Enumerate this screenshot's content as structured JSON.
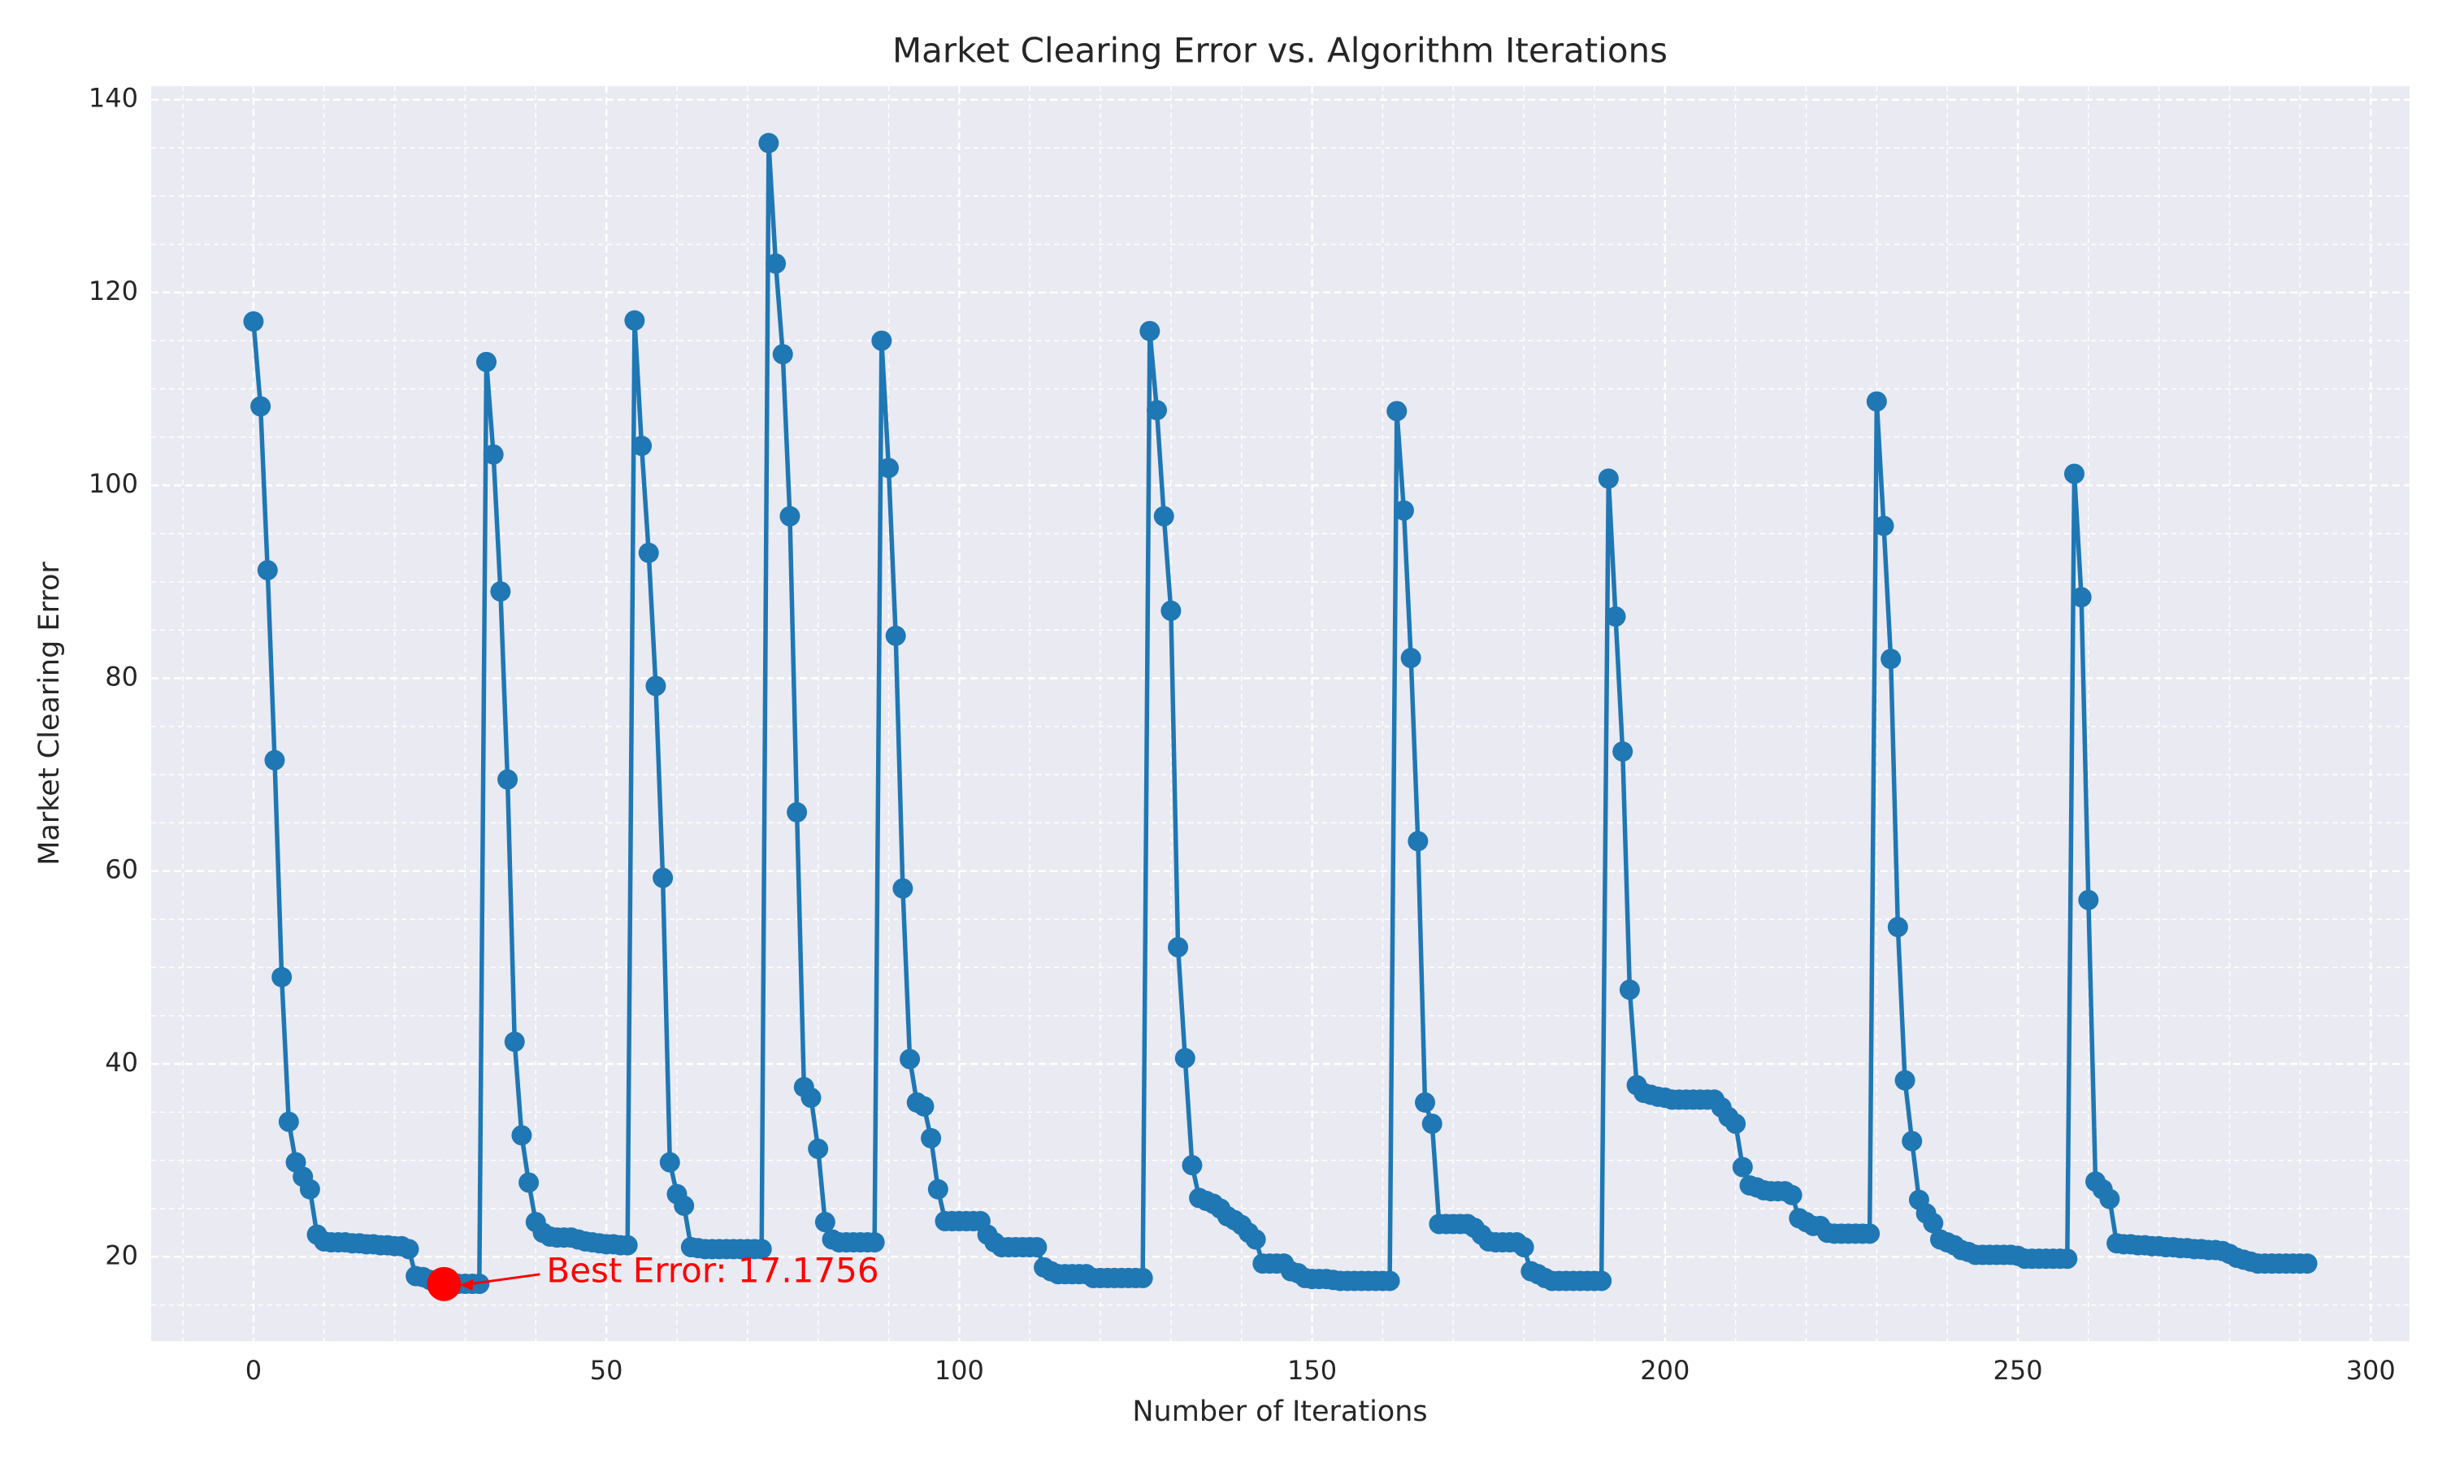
{
  "chart_data": {
    "type": "line",
    "title": "Market Clearing Error vs. Algorithm Iterations",
    "xlabel": "Number of Iterations",
    "ylabel": "Market Clearing Error",
    "x": [
      0,
      1,
      2,
      3,
      4,
      5,
      6,
      7,
      8,
      9,
      10,
      11,
      12,
      13,
      14,
      15,
      16,
      17,
      18,
      19,
      20,
      21,
      22,
      23,
      24,
      25,
      26,
      27,
      28,
      29,
      30,
      31,
      32,
      33,
      34,
      35,
      36,
      37,
      38,
      39,
      40,
      41,
      42,
      43,
      44,
      45,
      46,
      47,
      48,
      49,
      50,
      51,
      52,
      53,
      54,
      55,
      56,
      57,
      58,
      59,
      60,
      61,
      62,
      63,
      64,
      65,
      66,
      67,
      68,
      69,
      70,
      71,
      72,
      73,
      74,
      75,
      76,
      77,
      78,
      79,
      80,
      81,
      82,
      83,
      84,
      85,
      86,
      87,
      88,
      89,
      90,
      91,
      92,
      93,
      94,
      95,
      96,
      97,
      98,
      99,
      100,
      101,
      102,
      103,
      104,
      105,
      106,
      107,
      108,
      109,
      110,
      111,
      112,
      113,
      114,
      115,
      116,
      117,
      118,
      119,
      120,
      121,
      122,
      123,
      124,
      125,
      126,
      127,
      128,
      129,
      130,
      131,
      132,
      133,
      134,
      135,
      136,
      137,
      138,
      139,
      140,
      141,
      142,
      143,
      144,
      145,
      146,
      147,
      148,
      149,
      150,
      151,
      152,
      153,
      154,
      155,
      156,
      157,
      158,
      159,
      160,
      161,
      162,
      163,
      164,
      165,
      166,
      167,
      168,
      169,
      170,
      171,
      172,
      173,
      174,
      175,
      176,
      177,
      178,
      179,
      180,
      181,
      182,
      183,
      184,
      185,
      186,
      187,
      188,
      189,
      190,
      191,
      192,
      193,
      194,
      195,
      196,
      197,
      198,
      199,
      200,
      201,
      202,
      203,
      204,
      205,
      206,
      207,
      208,
      209,
      210,
      211,
      212,
      213,
      214,
      215,
      216,
      217,
      218,
      219,
      220,
      221,
      222,
      223,
      224,
      225,
      226,
      227,
      228,
      229,
      230,
      231,
      232,
      233,
      234,
      235,
      236,
      237,
      238,
      239,
      240,
      241,
      242,
      243,
      244,
      245,
      246,
      247,
      248,
      249,
      250,
      251,
      252,
      253,
      254,
      255,
      256,
      257,
      258,
      259,
      260,
      261,
      262,
      263,
      264,
      265,
      266,
      267,
      268,
      269,
      270,
      271,
      272,
      273,
      274,
      275,
      276,
      277,
      278,
      279,
      280,
      281,
      282,
      283,
      284,
      285,
      286,
      287,
      288,
      289,
      290,
      291
    ],
    "series": [
      {
        "name": "Market Clearing Error",
        "color": "#1f77b4",
        "values": [
          117,
          108.2,
          91.2,
          71.5,
          49,
          34,
          29.8,
          28.3,
          27,
          22.3,
          21.6,
          21.5,
          21.5,
          21.5,
          21.4,
          21.4,
          21.3,
          21.3,
          21.2,
          21.2,
          21.1,
          21.1,
          20.8,
          18,
          17.9,
          17.6,
          17.4,
          17.1756,
          17.2,
          17.2,
          17.2,
          17.2,
          17.2,
          112.8,
          103.2,
          89,
          69.5,
          42.3,
          32.6,
          27.7,
          23.6,
          22.5,
          22.1,
          22,
          22,
          22,
          21.8,
          21.6,
          21.5,
          21.4,
          21.3,
          21.3,
          21.2,
          21.2,
          117.1,
          104.1,
          93,
          79.2,
          59.3,
          29.8,
          26.5,
          25.3,
          21,
          20.9,
          20.8,
          20.8,
          20.8,
          20.8,
          20.8,
          20.8,
          20.8,
          20.8,
          20.8,
          135.5,
          123,
          113.6,
          96.8,
          66.1,
          37.6,
          36.5,
          31.2,
          23.6,
          21.8,
          21.5,
          21.5,
          21.5,
          21.5,
          21.5,
          21.5,
          115,
          101.8,
          84.4,
          58.2,
          40.5,
          36,
          35.6,
          32.3,
          27,
          23.7,
          23.7,
          23.7,
          23.7,
          23.7,
          23.7,
          22.3,
          21.5,
          21,
          21,
          21,
          21,
          21,
          21,
          18.9,
          18.5,
          18.2,
          18.2,
          18.2,
          18.2,
          18.2,
          17.8,
          17.8,
          17.8,
          17.8,
          17.8,
          17.8,
          17.8,
          17.8,
          116,
          107.8,
          96.8,
          87,
          52.1,
          40.6,
          29.5,
          26.1,
          25.8,
          25.5,
          25,
          24.2,
          23.8,
          23.3,
          22.5,
          21.8,
          19.3,
          19.3,
          19.3,
          19.3,
          18.5,
          18.3,
          17.8,
          17.7,
          17.7,
          17.7,
          17.6,
          17.5,
          17.5,
          17.5,
          17.5,
          17.5,
          17.5,
          17.5,
          17.5,
          107.7,
          97.4,
          82.1,
          63.1,
          36,
          33.8,
          23.4,
          23.4,
          23.4,
          23.4,
          23.4,
          23,
          22.3,
          21.6,
          21.5,
          21.5,
          21.5,
          21.5,
          21,
          18.5,
          18.2,
          17.8,
          17.5,
          17.5,
          17.5,
          17.5,
          17.5,
          17.5,
          17.5,
          17.5,
          100.7,
          86.4,
          72.4,
          47.7,
          37.8,
          37,
          36.8,
          36.6,
          36.5,
          36.3,
          36.3,
          36.3,
          36.3,
          36.3,
          36.3,
          36.3,
          35.5,
          34.5,
          33.8,
          29.3,
          27.4,
          27.2,
          26.9,
          26.8,
          26.8,
          26.8,
          26.4,
          24,
          23.6,
          23.2,
          23.2,
          22.5,
          22.4,
          22.4,
          22.4,
          22.4,
          22.4,
          22.4,
          108.7,
          95.8,
          82,
          54.2,
          38.3,
          32,
          25.9,
          24.5,
          23.5,
          21.8,
          21.5,
          21.2,
          20.7,
          20.5,
          20.2,
          20.2,
          20.2,
          20.2,
          20.2,
          20.2,
          20.1,
          19.8,
          19.8,
          19.8,
          19.8,
          19.8,
          19.8,
          19.8,
          101.2,
          88.4,
          57,
          27.8,
          27,
          26,
          21.4,
          21.3,
          21.3,
          21.2,
          21.2,
          21.1,
          21.1,
          21.0,
          21.0,
          20.9,
          20.9,
          20.8,
          20.8,
          20.7,
          20.7,
          20.6,
          20.3,
          19.9,
          19.7,
          19.5,
          19.3,
          19.3,
          19.3,
          19.3,
          19.3,
          19.3,
          19.3,
          19.3
        ]
      }
    ],
    "annotation": {
      "text": "Best Error: 17.1756",
      "x": 27,
      "y": 17.1756,
      "color": "#ff0000"
    },
    "xlim": [
      -14.5,
      305.5
    ],
    "ylim": [
      11.26,
      141.4
    ],
    "xticks": [
      0,
      50,
      100,
      150,
      200,
      250,
      300
    ],
    "yticks": [
      20,
      40,
      60,
      80,
      100,
      120,
      140
    ],
    "xminorticks": [
      -10,
      10,
      20,
      30,
      40,
      60,
      70,
      80,
      90,
      110,
      120,
      130,
      140,
      160,
      170,
      180,
      190,
      210,
      220,
      230,
      240,
      260,
      270,
      280,
      290
    ],
    "yminorticks": [
      15,
      25,
      30,
      35,
      45,
      50,
      55,
      65,
      70,
      75,
      85,
      90,
      95,
      105,
      110,
      115,
      125,
      130,
      135
    ],
    "grid": true
  }
}
